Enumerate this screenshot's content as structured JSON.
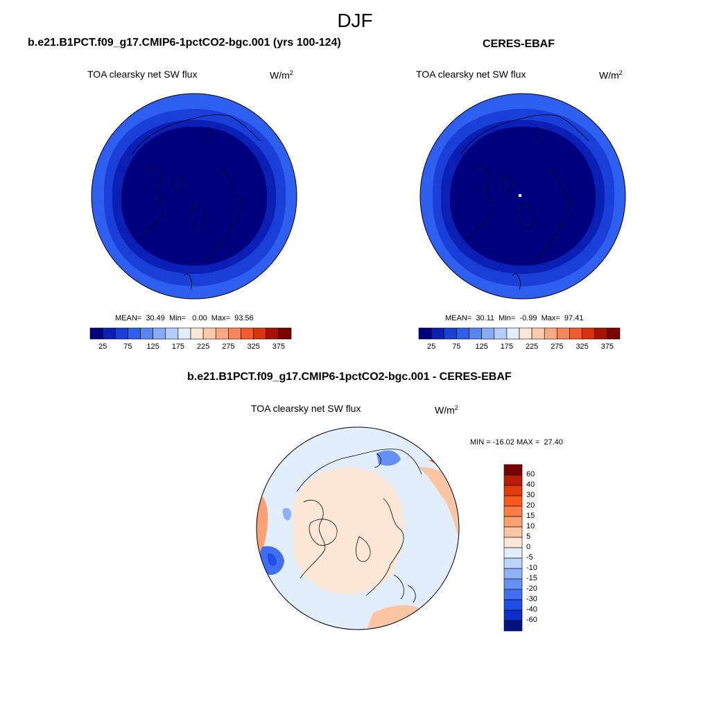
{
  "season": "DJF",
  "units": {
    "base": "W/m",
    "exp": "2"
  },
  "panels": [
    {
      "title": "b.e21.B1PCT.f09_g17.CMIP6-1pctCO2-bgc.001 (yrs 100-124)",
      "variable": "TOA clearsky net SW flux",
      "stats": "MEAN=  30.49  Min=   0.00  Max=  93.56"
    },
    {
      "title": "CERES-EBAF",
      "variable": "TOA clearsky net SW flux",
      "stats": "MEAN=  30.11  Min=  -0.99  Max=  97.41"
    }
  ],
  "diff": {
    "title": "b.e21.B1PCT.f09_g17.CMIP6-1pctCO2-bgc.001 - CERES-EBAF",
    "variable": "TOA clearsky net SW flux",
    "stats": "MIN = -16.02 MAX =  27.40"
  },
  "colorbar_abs": {
    "ticks": [
      "25",
      "75",
      "125",
      "175",
      "225",
      "275",
      "325",
      "375"
    ],
    "colors": [
      "#00007f",
      "#0a1fb4",
      "#1a3fd9",
      "#2f5ff0",
      "#5a86f5",
      "#87abf8",
      "#b6cdfb",
      "#e3eefd",
      "#fde7d6",
      "#fdc9ab",
      "#fca882",
      "#f9855a",
      "#f35a2e",
      "#d8330f",
      "#a81206",
      "#7a0000"
    ]
  },
  "colorbar_diff": {
    "labels": [
      "60",
      "40",
      "30",
      "20",
      "15",
      "10",
      "5",
      "0",
      "-5",
      "-10",
      "-15",
      "-20",
      "-30",
      "-40",
      "-60"
    ],
    "colors": [
      "#7a0000",
      "#b81c05",
      "#e23a0e",
      "#fa5a1c",
      "#fb7e46",
      "#fca173",
      "#fcc6a4",
      "#fde7d6",
      "#e3eefd",
      "#bcd3fb",
      "#8fb1f8",
      "#6690f4",
      "#3f6ef0",
      "#1f4fe6",
      "#0b2fc8",
      "#00127e"
    ]
  }
}
